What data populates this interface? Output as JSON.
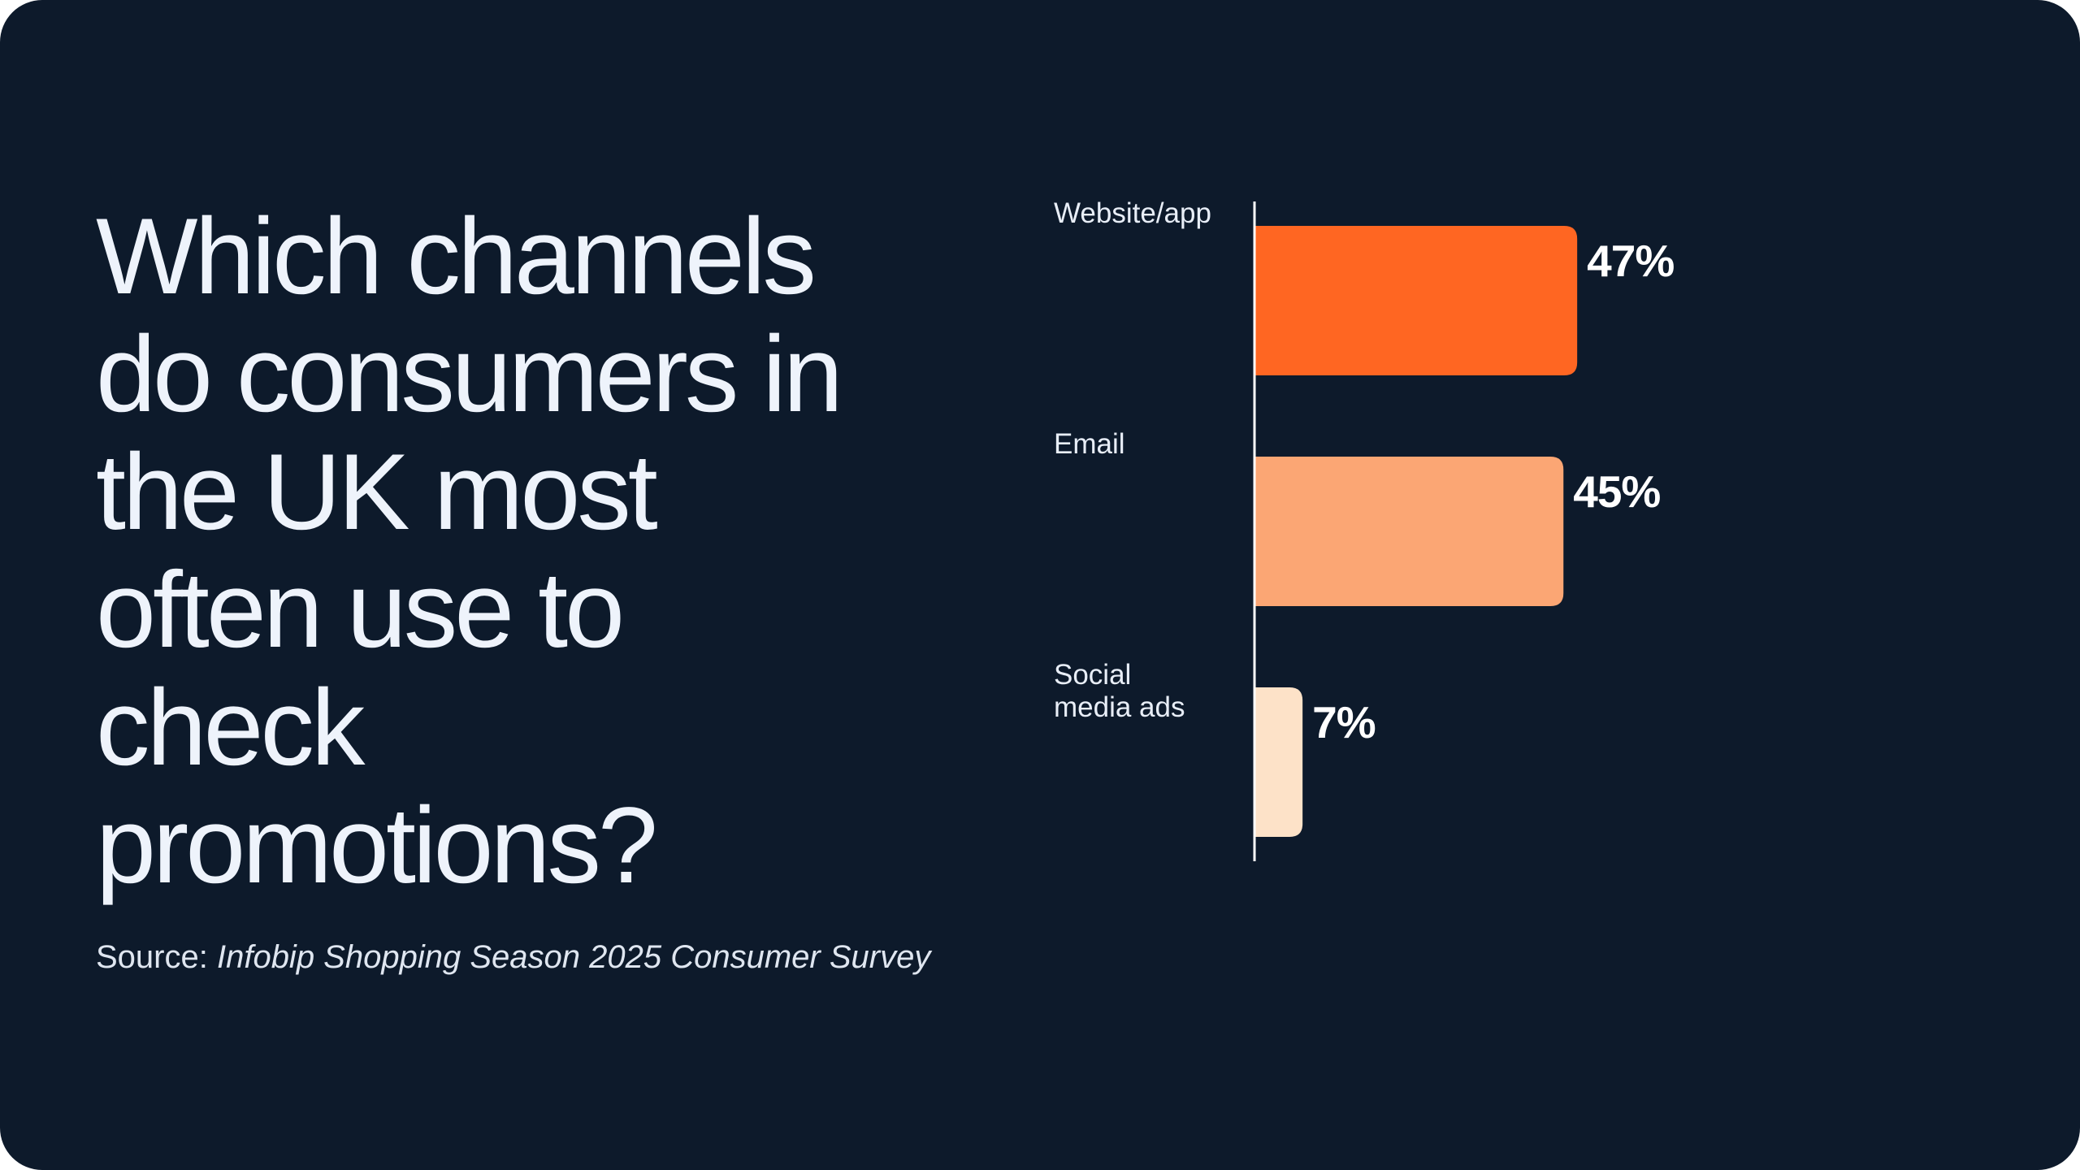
{
  "question": "Which channels\ndo consumers in\nthe UK most\noften use to\ncheck\npromotions?",
  "source": {
    "prefix": "Source: ",
    "publication": "Infobip Shopping Season 2025 Consumer Survey"
  },
  "colors": {
    "background": "#0d1a2b",
    "text": "#eef3fb",
    "axis": "#ffffff"
  },
  "chart_data": {
    "type": "bar",
    "orientation": "horizontal",
    "categories": [
      [
        "Website/app"
      ],
      [
        "Email"
      ],
      [
        "Social",
        "media ads"
      ]
    ],
    "values": [
      47,
      45,
      7
    ],
    "value_labels": [
      "47%",
      "45%",
      "7%"
    ],
    "bar_colors": [
      "#ff6622",
      "#fba674",
      "#fde2c8"
    ],
    "unit": "%",
    "grid": false,
    "legend": "none"
  }
}
